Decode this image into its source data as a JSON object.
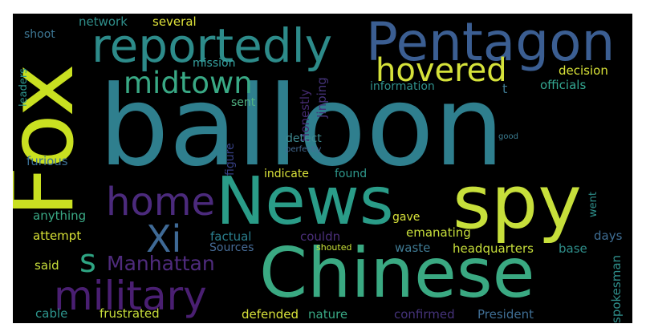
{
  "wordcloud": {
    "words": [
      {
        "id": "balloon",
        "text": "balloon",
        "color": "#2f7f8e"
      },
      {
        "id": "news",
        "text": "News",
        "color": "#2a9c88"
      },
      {
        "id": "chinese",
        "text": "Chinese",
        "color": "#3aa982"
      },
      {
        "id": "spy",
        "text": "spy",
        "color": "#c7df3b"
      },
      {
        "id": "fox",
        "text": "Fox",
        "color": "#c9e021"
      },
      {
        "id": "pentagon",
        "text": "Pentagon",
        "color": "#3b5e92"
      },
      {
        "id": "reportedly",
        "text": "reportedly",
        "color": "#2d8b8a"
      },
      {
        "id": "military",
        "text": "military",
        "color": "#4a1f72"
      },
      {
        "id": "home",
        "text": "home",
        "color": "#4b2a7c"
      },
      {
        "id": "hovered",
        "text": "hovered",
        "color": "#d5e23a"
      },
      {
        "id": "midtown",
        "text": "midtown",
        "color": "#39a985"
      },
      {
        "id": "xi",
        "text": "Xi",
        "color": "#3f6a96"
      },
      {
        "id": "manhattan",
        "text": "Manhattan",
        "color": "#4f2b7d"
      },
      {
        "id": "s",
        "text": "s",
        "color": "#2ea583"
      },
      {
        "id": "network",
        "text": "network",
        "color": "#2f8e8a"
      },
      {
        "id": "several",
        "text": "several",
        "color": "#dfe33a"
      },
      {
        "id": "shoot",
        "text": "shoot",
        "color": "#3d7794"
      },
      {
        "id": "mission",
        "text": "mission",
        "color": "#36a2a0"
      },
      {
        "id": "honestly",
        "text": "Honestly",
        "color": "#452b72"
      },
      {
        "id": "jinping",
        "text": "Jinping",
        "color": "#45337a"
      },
      {
        "id": "information",
        "text": "information",
        "color": "#2f8f8b"
      },
      {
        "id": "t",
        "text": "t",
        "color": "#3f7a93"
      },
      {
        "id": "decision",
        "text": "decision",
        "color": "#d9e238"
      },
      {
        "id": "officials",
        "text": "officials",
        "color": "#34a892"
      },
      {
        "id": "leaders",
        "text": "leaders",
        "color": "#2e968e"
      },
      {
        "id": "sent",
        "text": "sent",
        "color": "#52b584"
      },
      {
        "id": "figure",
        "text": "figure",
        "color": "#363f83"
      },
      {
        "id": "detect",
        "text": "detect",
        "color": "#3f8b91"
      },
      {
        "id": "perfectly",
        "text": "perfectly",
        "color": "#466d96"
      },
      {
        "id": "good",
        "text": "good",
        "color": "#3c7e92"
      },
      {
        "id": "furious",
        "text": "furious",
        "color": "#3b6f93"
      },
      {
        "id": "indicate",
        "text": "indicate",
        "color": "#d9e23a"
      },
      {
        "id": "found",
        "text": "found",
        "color": "#2f9a8e"
      },
      {
        "id": "went",
        "text": "went",
        "color": "#2e8f8b"
      },
      {
        "id": "anything",
        "text": "anything",
        "color": "#3aa985"
      },
      {
        "id": "gave",
        "text": "gave",
        "color": "#d8e23a"
      },
      {
        "id": "days",
        "text": "days",
        "color": "#3f6e94"
      },
      {
        "id": "attempt",
        "text": "attempt",
        "color": "#d8e136"
      },
      {
        "id": "factual",
        "text": "factual",
        "color": "#2a7e8d"
      },
      {
        "id": "couldn",
        "text": "couldn",
        "color": "#4b2f7a"
      },
      {
        "id": "emanating",
        "text": "emanating",
        "color": "#c8df3b"
      },
      {
        "id": "sources",
        "text": "Sources",
        "color": "#466b96"
      },
      {
        "id": "shouted",
        "text": "shouted",
        "color": "#c9e038"
      },
      {
        "id": "headquarters",
        "text": "headquarters",
        "color": "#c8df3b"
      },
      {
        "id": "base",
        "text": "base",
        "color": "#2f8f8b"
      },
      {
        "id": "said",
        "text": "said",
        "color": "#c8df3b"
      },
      {
        "id": "waste",
        "text": "waste",
        "color": "#3f7a93"
      },
      {
        "id": "spokesman",
        "text": "spokesman",
        "color": "#2f8f8b"
      },
      {
        "id": "cable",
        "text": "cable",
        "color": "#2e968e"
      },
      {
        "id": "frustrated",
        "text": "frustrated",
        "color": "#c8df3b"
      },
      {
        "id": "defended",
        "text": "defended",
        "color": "#d8e23a"
      },
      {
        "id": "nature",
        "text": "nature",
        "color": "#39a985"
      },
      {
        "id": "confirmed",
        "text": "confirmed",
        "color": "#45337a"
      },
      {
        "id": "president",
        "text": "President",
        "color": "#3f6e94"
      }
    ]
  }
}
